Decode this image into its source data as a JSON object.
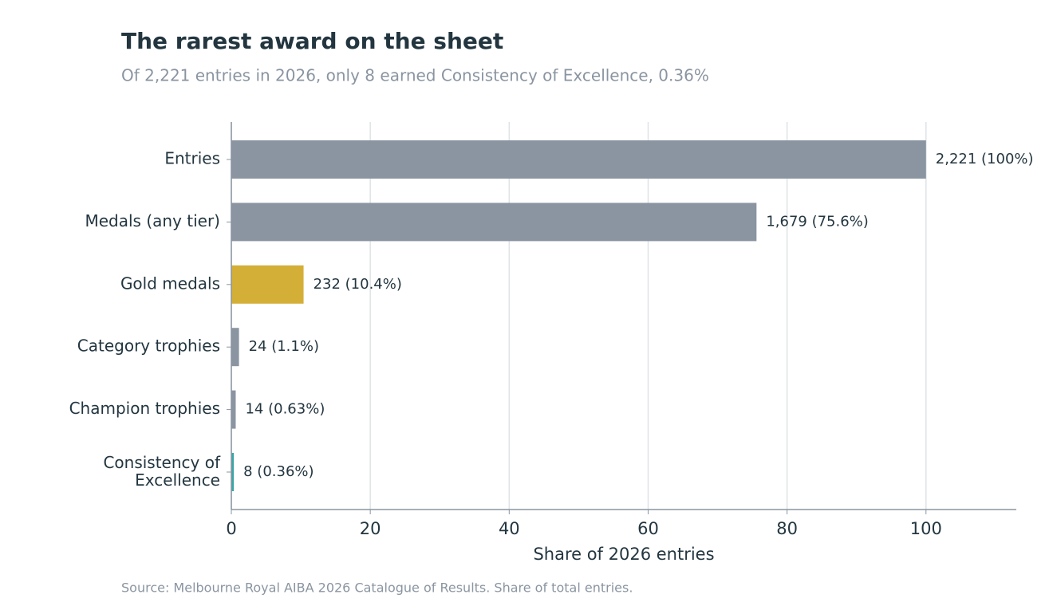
{
  "chart_data": {
    "type": "barh",
    "title": "The rarest award on the sheet",
    "subtitle": "Of 2,221 entries in 2026, only 8 earned Consistency of Excellence, 0.36%",
    "x_label": "Share of 2026 entries",
    "source": "Source: Melbourne Royal AIBA 2026 Catalogue of Results. Share of total entries.",
    "categories": [
      "Entries",
      "Medals (any tier)",
      "Gold medals",
      "Category trophies",
      "Champion trophies",
      "Consistency of\nExcellence"
    ],
    "values": [
      100,
      75.6,
      10.4,
      1.1,
      0.63,
      0.36
    ],
    "value_labels": [
      "2,221 (100%)",
      "1,679 (75.6%)",
      "232 (10.4%)",
      "24 (1.1%)",
      "14 (0.63%)",
      "8 (0.36%)"
    ],
    "colors": [
      "#8a95a1",
      "#8a95a1",
      "#d4af37",
      "#8a95a1",
      "#8a95a1",
      "#3aa6a6"
    ],
    "xlim": [
      0,
      113
    ],
    "xticks": [
      0,
      20,
      40,
      60,
      80,
      100
    ],
    "grid": true
  }
}
